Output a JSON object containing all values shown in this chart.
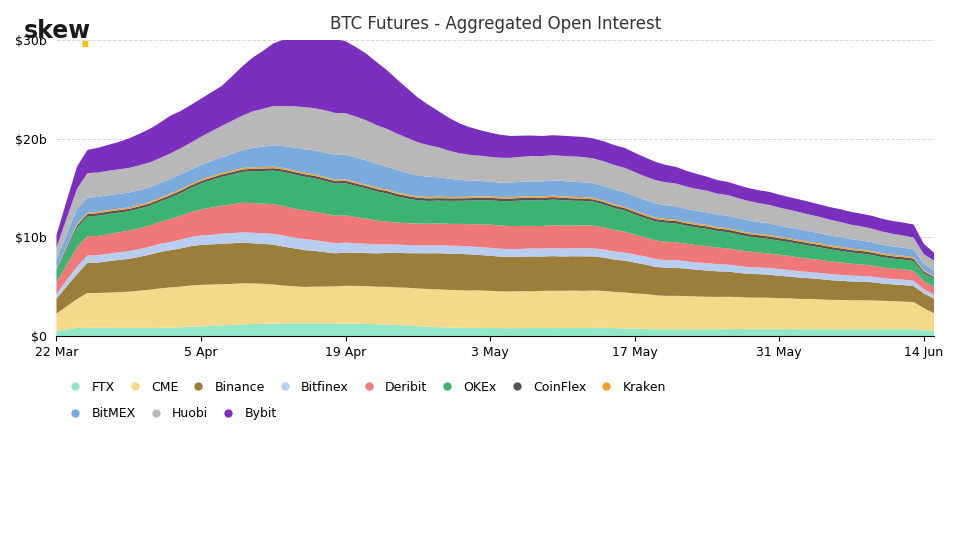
{
  "title": "BTC Futures - Aggregated Open Interest",
  "skew_dot_color": "#f5c518",
  "background_color": "#ffffff",
  "grid_color": "#cccccc",
  "x_labels": [
    "22 Mar",
    "5 Apr",
    "19 Apr",
    "3 May",
    "17 May",
    "31 May",
    "14 Jun"
  ],
  "legend_colors": {
    "FTX": "#90e8c8",
    "CME": "#f5d98b",
    "Binance": "#9b7e3a",
    "Bitfinex": "#b8cef0",
    "Deribit": "#f07878",
    "OKEx": "#3cb371",
    "CoinFlex": "#555555",
    "Kraken": "#f0a030",
    "BitMEX": "#7aabdc",
    "Huobi": "#b8b8b8",
    "Bybit": "#7b2fbe"
  },
  "legend_row1": [
    "FTX",
    "CME",
    "Binance",
    "Bitfinex",
    "Deribit",
    "OKEx",
    "CoinFlex",
    "Kraken"
  ],
  "legend_row2": [
    "BitMEX",
    "Huobi",
    "Bybit"
  ],
  "stack_order": [
    "FTX",
    "CME",
    "Binance",
    "Bitfinex",
    "Deribit",
    "OKEx",
    "CoinFlex",
    "Kraken",
    "BitMEX",
    "Huobi",
    "Bybit"
  ]
}
